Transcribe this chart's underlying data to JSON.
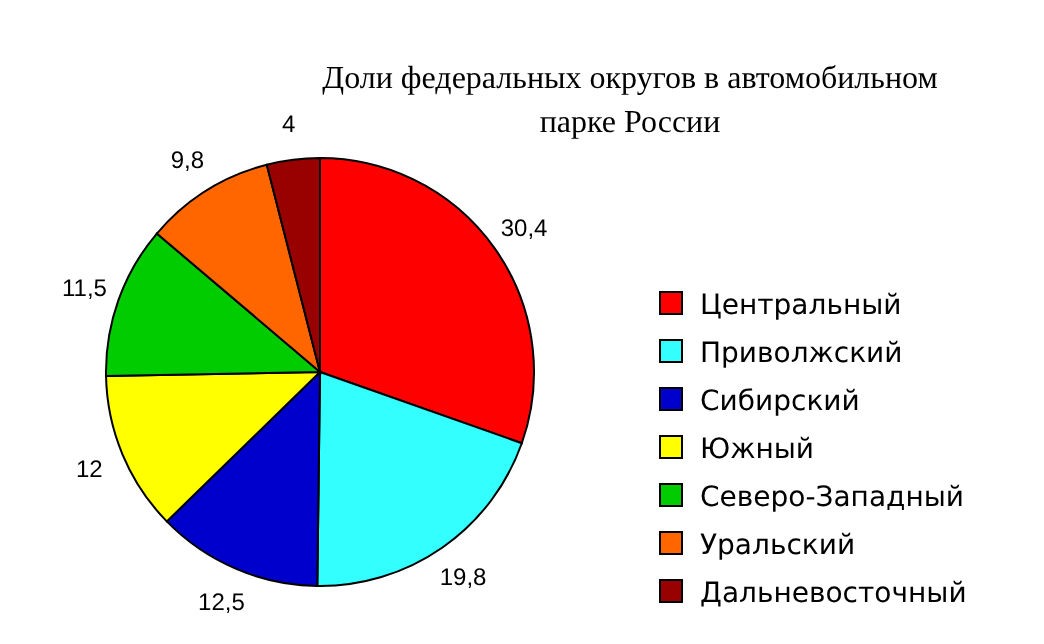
{
  "chart_data": {
    "type": "pie",
    "title": "Доли федеральных округов в автомобильном\nпарке России",
    "categories": [
      "Центральный",
      "Приволжский",
      "Сибирский",
      "Южный",
      "Северо-Западный",
      "Уральский",
      "Дальневосточный"
    ],
    "values": [
      30.4,
      19.8,
      12.5,
      12,
      11.5,
      9.8,
      4
    ],
    "colors": [
      "#ff0000",
      "#33ffff",
      "#0000cc",
      "#ffff00",
      "#00cc00",
      "#ff6600",
      "#990000"
    ],
    "value_labels": [
      "30,4",
      "19,8",
      "12,5",
      "12",
      "11,5",
      "9,8",
      "4"
    ],
    "legend": "right"
  }
}
